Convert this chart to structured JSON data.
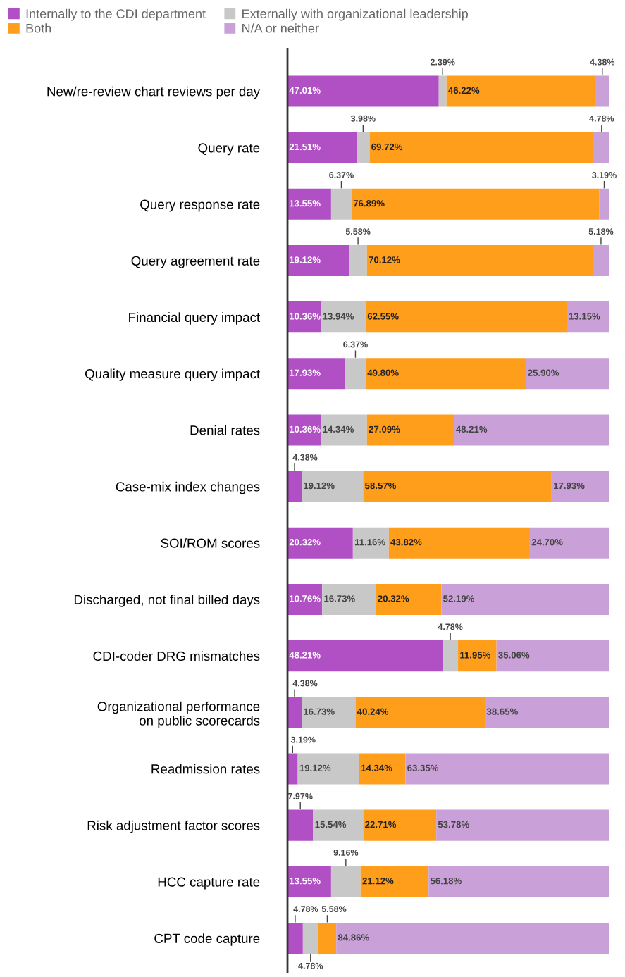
{
  "chart_data": {
    "type": "bar",
    "orientation": "horizontal",
    "stacked": true,
    "legend": "top left",
    "grid": false,
    "tick_labels": "y",
    "categories": [
      "New/re-review chart reviews per day",
      "Query rate",
      "Query response rate",
      "Query agreement rate",
      "Financial query impact",
      "Quality measure query impact",
      "Denial rates",
      "Case-mix index changes",
      "SOI/ROM scores",
      "Discharged, not final billed days",
      "CDI-coder DRG mismatches",
      "Organizational performance\non public scorecards",
      "Readmission rates",
      "Risk adjustment factor scores",
      "HCC capture rate",
      "CPT code capture"
    ],
    "series": [
      {
        "name": "Internally to the CDI department",
        "color": "#b14fc5",
        "values": [
          47.01,
          21.51,
          13.55,
          19.12,
          10.36,
          17.93,
          10.36,
          4.38,
          20.32,
          10.76,
          48.21,
          4.38,
          3.19,
          7.97,
          13.55,
          4.78
        ],
        "value_labels": [
          "47.01%",
          "21.51%",
          "13.55%",
          "19.12%",
          "10.36%",
          "17.93%",
          "10.36%",
          "4.38%",
          "20.32%",
          "10.76%",
          "48.21%",
          "4.38%",
          "3.19%",
          "7.97%",
          "13.55%",
          "4.78%"
        ]
      },
      {
        "name": "Externally with organizational leadership",
        "color": "#c8c8c8",
        "values": [
          2.39,
          3.98,
          6.37,
          5.58,
          13.94,
          6.37,
          14.34,
          19.12,
          11.16,
          16.73,
          4.78,
          16.73,
          19.12,
          15.54,
          9.16,
          4.78
        ],
        "value_labels": [
          "2.39%",
          "3.98%",
          "6.37%",
          "5.58%",
          "13.94%",
          "6.37%",
          "14.34%",
          "19.12%",
          "11.16%",
          "16.73%",
          "4.78%",
          "16.73%",
          "19.12%",
          "15.54%",
          "9.16%",
          "4.78%"
        ]
      },
      {
        "name": "Both",
        "color": "#ff9e1b",
        "values": [
          46.22,
          69.72,
          76.89,
          70.12,
          62.55,
          49.8,
          27.09,
          58.57,
          43.82,
          20.32,
          11.95,
          40.24,
          14.34,
          22.71,
          21.12,
          5.58
        ],
        "value_labels": [
          "46.22%",
          "69.72%",
          "76.89%",
          "70.12%",
          "62.55%",
          "49.80%",
          "27.09%",
          "58.57%",
          "43.82%",
          "20.32%",
          "11.95%",
          "40.24%",
          "14.34%",
          "22.71%",
          "21.12%",
          "5.58%"
        ]
      },
      {
        "name": "N/A or neither",
        "color": "#c9a0d8",
        "values": [
          4.38,
          4.78,
          3.19,
          5.18,
          13.15,
          25.9,
          48.21,
          17.93,
          24.7,
          52.19,
          35.06,
          38.65,
          63.35,
          53.78,
          56.18,
          84.86
        ],
        "value_labels": [
          "4.38%",
          "4.78%",
          "3.19%",
          "5.18%",
          "13.15%",
          "25.90%",
          "48.21%",
          "17.93%",
          "24.70%",
          "52.19%",
          "35.06%",
          "38.65%",
          "63.35%",
          "53.78%",
          "56.18%",
          "84.86%"
        ]
      }
    ]
  }
}
